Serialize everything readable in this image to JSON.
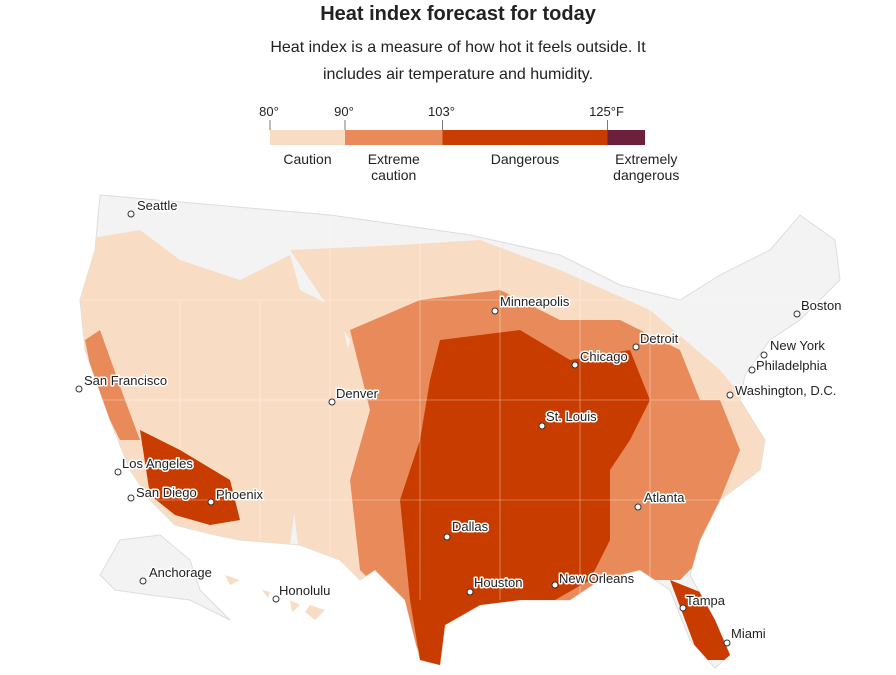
{
  "title": "Heat index forecast for today",
  "subtitle": "Heat index is a measure of how hot it feels outside. It includes air temperature and humidity.",
  "legend": {
    "range": [
      80,
      130
    ],
    "ticks": [
      {
        "value": 80,
        "label": "80°"
      },
      {
        "value": 90,
        "label": "90°"
      },
      {
        "value": 103,
        "label": "103°"
      },
      {
        "value": 125,
        "label": "125°F"
      }
    ],
    "bands": [
      {
        "label": "Caution",
        "color": "#f9dcc4"
      },
      {
        "label": "Extreme caution",
        "color": "#e98a5a"
      },
      {
        "label": "Dangerous",
        "color": "#c93c00"
      },
      {
        "label": "Extremely dangerous",
        "color": "#6d1f3c"
      }
    ]
  },
  "cities": [
    "Seattle",
    "Minneapolis",
    "Boston",
    "Detroit",
    "New York",
    "Chicago",
    "Philadelphia",
    "San Francisco",
    "Denver",
    "Washington, D.C.",
    "St. Louis",
    "Los Angeles",
    "San Diego",
    "Phoenix",
    "Atlanta",
    "Dallas",
    "Anchorage",
    "Houston",
    "New Orleans",
    "Honolulu",
    "Tampa",
    "Miami"
  ]
}
